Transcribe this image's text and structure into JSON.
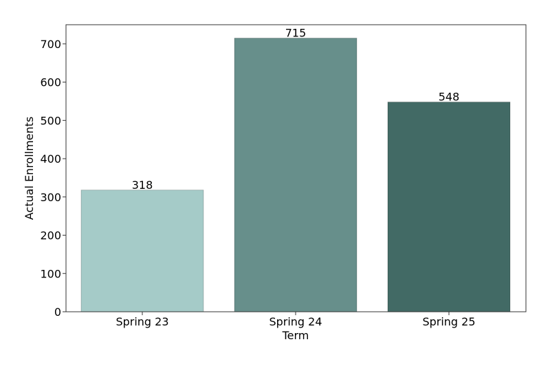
{
  "chart_data": {
    "type": "bar",
    "categories": [
      "Spring 23",
      "Spring 24",
      "Spring 25"
    ],
    "values": [
      318,
      715,
      548
    ],
    "data_labels": [
      "318",
      "715",
      "548"
    ],
    "colors": [
      "#a5cbc8",
      "#678f8b",
      "#426a65"
    ],
    "title": "",
    "xlabel": "Term",
    "ylabel": "Actual Enrollments",
    "ylim": [
      0,
      750
    ],
    "yticks": [
      0,
      100,
      200,
      300,
      400,
      500,
      600,
      700
    ],
    "ytick_labels": [
      "0",
      "100",
      "200",
      "300",
      "400",
      "500",
      "600",
      "700"
    ],
    "grid": false,
    "legend": "none"
  }
}
